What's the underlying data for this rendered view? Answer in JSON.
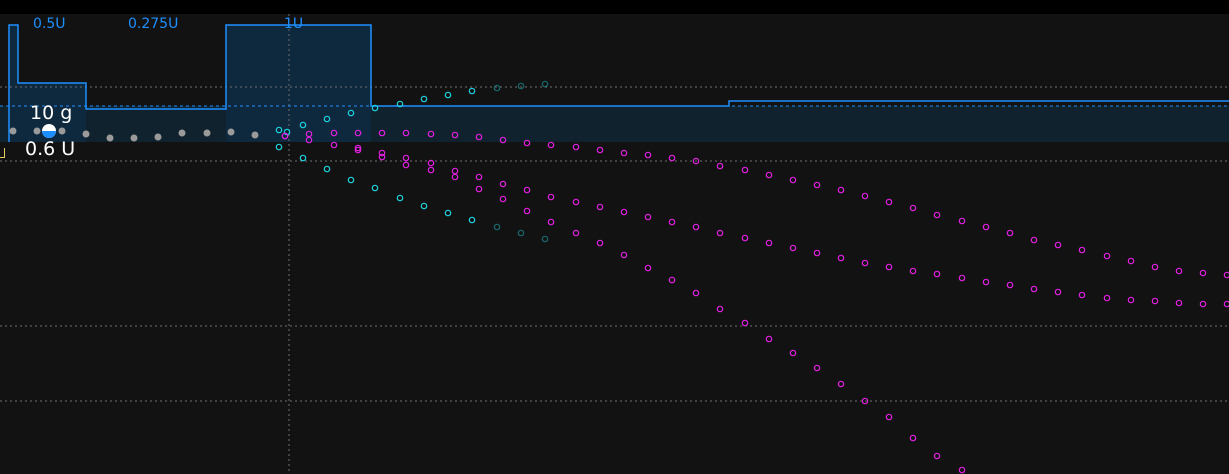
{
  "colors": {
    "background": "#121212",
    "top_bar": "#000000",
    "basal_line": "#1e8fff",
    "basal_fill": "#0f2f47",
    "grid": "#707070",
    "cyan_prediction": "#1ed3df",
    "magenta_prediction": "#e020e0",
    "history_dots": "#9a9a9a",
    "bolus_marker": "#1e8fff",
    "edge_marker": "#e8c862"
  },
  "basal": {
    "labels": [
      "0.5U",
      "0.275U",
      "1U"
    ]
  },
  "readout": {
    "carbs": "10 g",
    "bolus": "0.6 U"
  }
}
